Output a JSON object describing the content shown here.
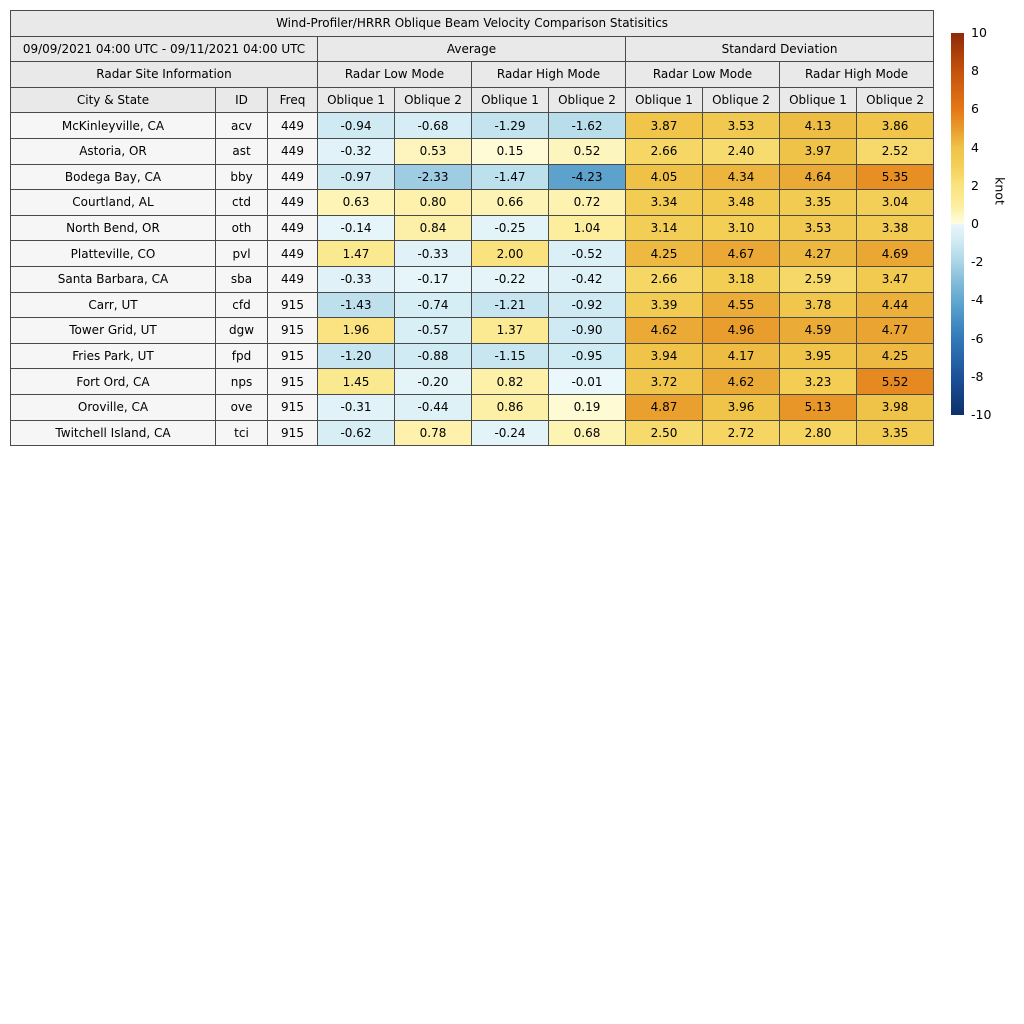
{
  "figure": {
    "title": "Wind-Profiler/HRRR Oblique Beam Velocity Comparison Statisitics"
  },
  "table_headers": {
    "date_range": "09/09/2021 04:00 UTC - 09/11/2021 04:00 UTC",
    "average_label": "Average",
    "std_label": "Standard Deviation",
    "site_info_label": "Radar Site Information",
    "low_mode_label": "Radar Low Mode",
    "high_mode_label": "Radar High Mode",
    "city_label": "City & State",
    "id_label": "ID",
    "freq_label": "Freq",
    "oblique1_label": "Oblique 1",
    "oblique2_label": "Oblique 2"
  },
  "colorbar": {
    "label": "knot",
    "vmin": -10,
    "vmax": 10,
    "ticks": [
      "10",
      "8",
      "6",
      "4",
      "2",
      "0",
      "-2",
      "-4",
      "-6",
      "-8",
      "-10"
    ],
    "positive_anchors": [
      [
        0,
        "#fffde1"
      ],
      [
        1,
        "#fcee9d"
      ],
      [
        2,
        "#fae37f"
      ],
      [
        3,
        "#f4d058"
      ],
      [
        4,
        "#efc348"
      ],
      [
        5,
        "#e99b2b"
      ],
      [
        6,
        "#e67817"
      ],
      [
        8,
        "#c4520c"
      ],
      [
        10,
        "#8d2a09"
      ]
    ],
    "negative_anchors": [
      [
        0,
        "#eaf7fb"
      ],
      [
        1,
        "#cde9f2"
      ],
      [
        2,
        "#abd5e7"
      ],
      [
        3,
        "#84bcda"
      ],
      [
        4,
        "#62a8d0"
      ],
      [
        5,
        "#4690c4"
      ],
      [
        6,
        "#3379b8"
      ],
      [
        8,
        "#1c519a"
      ],
      [
        10,
        "#0d3168"
      ]
    ]
  },
  "chart_data": {
    "type": "heatmap",
    "title": "Wind-Profiler/HRRR Oblique Beam Velocity Comparison Statisitics",
    "unit": "knot",
    "color_range": [
      -10,
      10
    ],
    "columns": [
      "City & State",
      "ID",
      "Freq",
      "Average Radar Low Mode Oblique 1",
      "Average Radar Low Mode Oblique 2",
      "Average Radar High Mode Oblique 1",
      "Average Radar High Mode Oblique 2",
      "Standard Deviation Radar Low Mode Oblique 1",
      "Standard Deviation Radar Low Mode Oblique 2",
      "Standard Deviation Radar High Mode Oblique 1",
      "Standard Deviation Radar High Mode Oblique 2"
    ],
    "rows": [
      {
        "city": "McKinleyville, CA",
        "id": "acv",
        "freq": "449",
        "values": [
          "-0.94",
          "-0.68",
          "-1.29",
          "-1.62",
          "3.87",
          "3.53",
          "4.13",
          "3.86"
        ]
      },
      {
        "city": "Astoria, OR",
        "id": "ast",
        "freq": "449",
        "values": [
          "-0.32",
          "0.53",
          "0.15",
          "0.52",
          "2.66",
          "2.40",
          "3.97",
          "2.52"
        ]
      },
      {
        "city": "Bodega Bay, CA",
        "id": "bby",
        "freq": "449",
        "values": [
          "-0.97",
          "-2.33",
          "-1.47",
          "-4.23",
          "4.05",
          "4.34",
          "4.64",
          "5.35"
        ]
      },
      {
        "city": "Courtland, AL",
        "id": "ctd",
        "freq": "449",
        "values": [
          "0.63",
          "0.80",
          "0.66",
          "0.72",
          "3.34",
          "3.48",
          "3.35",
          "3.04"
        ]
      },
      {
        "city": "North Bend, OR",
        "id": "oth",
        "freq": "449",
        "values": [
          "-0.14",
          "0.84",
          "-0.25",
          "1.04",
          "3.14",
          "3.10",
          "3.53",
          "3.38"
        ]
      },
      {
        "city": "Platteville, CO",
        "id": "pvl",
        "freq": "449",
        "values": [
          "1.47",
          "-0.33",
          "2.00",
          "-0.52",
          "4.25",
          "4.67",
          "4.27",
          "4.69"
        ]
      },
      {
        "city": "Santa Barbara, CA",
        "id": "sba",
        "freq": "449",
        "values": [
          "-0.33",
          "-0.17",
          "-0.22",
          "-0.42",
          "2.66",
          "3.18",
          "2.59",
          "3.47"
        ]
      },
      {
        "city": "Carr, UT",
        "id": "cfd",
        "freq": "915",
        "values": [
          "-1.43",
          "-0.74",
          "-1.21",
          "-0.92",
          "3.39",
          "4.55",
          "3.78",
          "4.44"
        ]
      },
      {
        "city": "Tower Grid, UT",
        "id": "dgw",
        "freq": "915",
        "values": [
          "1.96",
          "-0.57",
          "1.37",
          "-0.90",
          "4.62",
          "4.96",
          "4.59",
          "4.77"
        ]
      },
      {
        "city": "Fries Park, UT",
        "id": "fpd",
        "freq": "915",
        "values": [
          "-1.20",
          "-0.88",
          "-1.15",
          "-0.95",
          "3.94",
          "4.17",
          "3.95",
          "4.25"
        ]
      },
      {
        "city": "Fort Ord, CA",
        "id": "nps",
        "freq": "915",
        "values": [
          "1.45",
          "-0.20",
          "0.82",
          "-0.01",
          "3.72",
          "4.62",
          "3.23",
          "5.52"
        ]
      },
      {
        "city": "Oroville, CA",
        "id": "ove",
        "freq": "915",
        "values": [
          "-0.31",
          "-0.44",
          "0.86",
          "0.19",
          "4.87",
          "3.96",
          "5.13",
          "3.98"
        ]
      },
      {
        "city": "Twitchell Island, CA",
        "id": "tci",
        "freq": "915",
        "values": [
          "-0.62",
          "0.78",
          "-0.24",
          "0.68",
          "2.50",
          "2.72",
          "2.80",
          "3.35"
        ]
      }
    ]
  }
}
